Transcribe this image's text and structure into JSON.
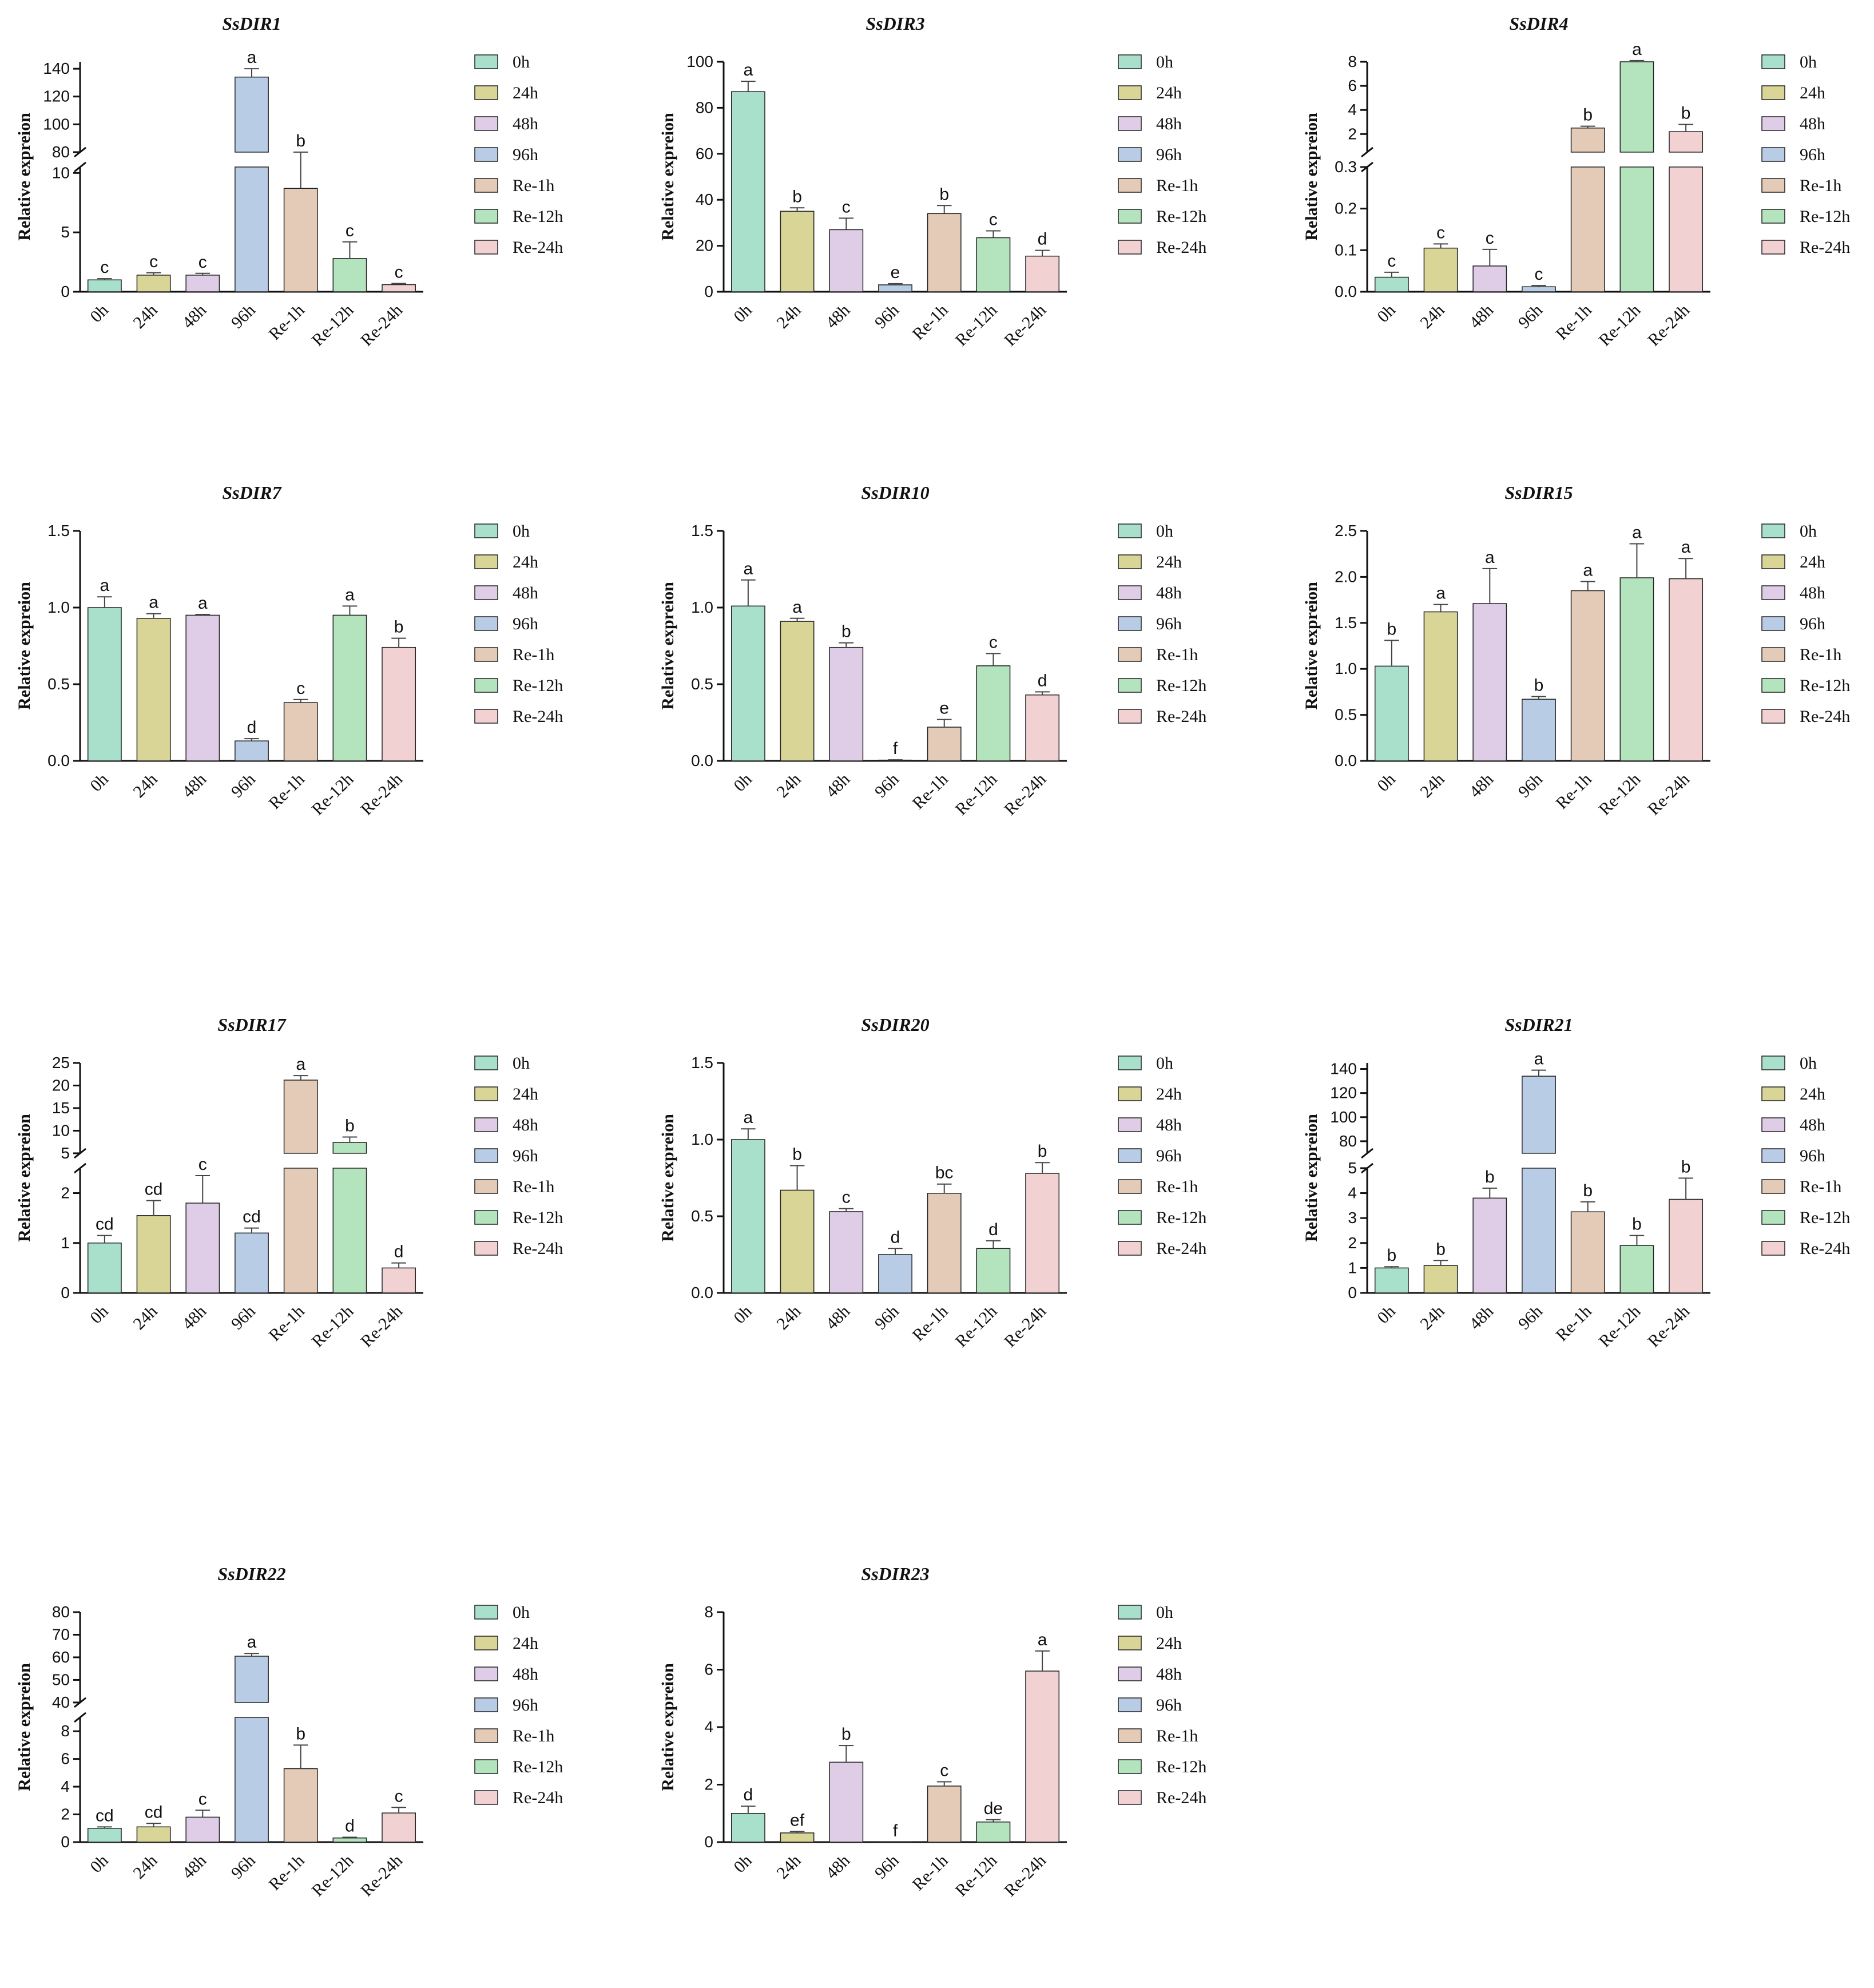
{
  "legend_colors": [
    "#a8e0cc",
    "#d8d596",
    "#dfcce6",
    "#b9cce6",
    "#e4cbb8",
    "#b3e4bd",
    "#f1d1d2"
  ],
  "chart_data": [
    {
      "type": "bar",
      "title": "SsDIR1",
      "ylabel": "Relative expreion",
      "categories": [
        "0h",
        "24h",
        "48h",
        "96h",
        "Re-1h",
        "Re-12h",
        "Re-24h"
      ],
      "values": [
        1.0,
        1.4,
        1.4,
        134,
        8.7,
        2.8,
        0.6
      ],
      "errors": [
        0.1,
        0.2,
        0.15,
        6,
        2.7,
        1.4,
        0.1
      ],
      "letters": [
        "c",
        "c",
        "c",
        "a",
        "b",
        "c",
        "c"
      ],
      "legend": [
        "0h",
        "24h",
        "48h",
        "96h",
        "Re-1h",
        "Re-12h",
        "Re-24h"
      ],
      "segments": [
        {
          "range": [
            0,
            10.5
          ],
          "ticks": [
            0,
            5,
            10
          ]
        },
        {
          "range": [
            80,
            145
          ],
          "ticks": [
            80,
            100,
            120,
            140
          ]
        }
      ]
    },
    {
      "type": "bar",
      "title": "SsDIR3",
      "ylabel": "Relative expreion",
      "categories": [
        "0h",
        "24h",
        "48h",
        "96h",
        "Re-1h",
        "Re-12h",
        "Re-24h"
      ],
      "values": [
        87,
        35,
        27,
        3,
        34,
        23.5,
        15.5
      ],
      "errors": [
        4.5,
        1.5,
        5,
        0.5,
        3.5,
        3,
        2.5
      ],
      "letters": [
        "a",
        "b",
        "c",
        "e",
        "b",
        "c",
        "d"
      ],
      "legend": [
        "0h",
        "24h",
        "48h",
        "96h",
        "Re-1h",
        "Re-12h",
        "Re-24h"
      ],
      "segments": [
        {
          "range": [
            0,
            100
          ],
          "ticks": [
            0,
            20,
            40,
            60,
            80,
            100
          ]
        }
      ]
    },
    {
      "type": "bar",
      "title": "SsDIR4",
      "ylabel": "Relative expreion",
      "categories": [
        "0h",
        "24h",
        "48h",
        "96h",
        "Re-1h",
        "Re-12h",
        "Re-24h"
      ],
      "values": [
        0.035,
        0.105,
        0.062,
        0.012,
        2.5,
        8.0,
        2.2
      ],
      "errors": [
        0.012,
        0.01,
        0.04,
        0.003,
        0.15,
        0.1,
        0.6
      ],
      "letters": [
        "c",
        "c",
        "c",
        "c",
        "b",
        "a",
        "b"
      ],
      "legend": [
        "0h",
        "24h",
        "48h",
        "96h",
        "Re-1h",
        "Re-12h",
        "Re-24h"
      ],
      "segments": [
        {
          "range": [
            0,
            0.3
          ],
          "ticks": [
            0.0,
            0.1,
            0.2,
            0.3
          ]
        },
        {
          "range": [
            0.5,
            8
          ],
          "ticks": [
            2,
            4,
            6,
            8
          ]
        }
      ]
    },
    {
      "type": "bar",
      "title": "SsDIR7",
      "ylabel": "Relative expreion",
      "categories": [
        "0h",
        "24h",
        "48h",
        "96h",
        "Re-1h",
        "Re-12h",
        "Re-24h"
      ],
      "values": [
        1.0,
        0.93,
        0.95,
        0.13,
        0.38,
        0.95,
        0.74
      ],
      "errors": [
        0.07,
        0.03,
        0.005,
        0.015,
        0.02,
        0.06,
        0.06
      ],
      "letters": [
        "a",
        "a",
        "a",
        "d",
        "c",
        "a",
        "b"
      ],
      "legend": [
        "0h",
        "24h",
        "48h",
        "96h",
        "Re-1h",
        "Re-12h",
        "Re-24h"
      ],
      "segments": [
        {
          "range": [
            0,
            1.5
          ],
          "ticks": [
            0.0,
            0.5,
            1.0,
            1.5
          ]
        }
      ]
    },
    {
      "type": "bar",
      "title": "SsDIR10",
      "ylabel": "Relative expreion",
      "categories": [
        "0h",
        "24h",
        "48h",
        "96h",
        "Re-1h",
        "Re-12h",
        "Re-24h"
      ],
      "values": [
        1.01,
        0.91,
        0.74,
        0.005,
        0.22,
        0.62,
        0.43
      ],
      "errors": [
        0.17,
        0.02,
        0.03,
        0.002,
        0.05,
        0.08,
        0.02
      ],
      "letters": [
        "a",
        "a",
        "b",
        "f",
        "e",
        "c",
        "d"
      ],
      "legend": [
        "0h",
        "24h",
        "48h",
        "96h",
        "Re-1h",
        "Re-12h",
        "Re-24h"
      ],
      "segments": [
        {
          "range": [
            0,
            1.5
          ],
          "ticks": [
            0.0,
            0.5,
            1.0,
            1.5
          ]
        }
      ]
    },
    {
      "type": "bar",
      "title": "SsDIR15",
      "ylabel": "Relative expreion",
      "categories": [
        "0h",
        "24h",
        "48h",
        "96h",
        "Re-1h",
        "Re-12h",
        "Re-24h"
      ],
      "values": [
        1.03,
        1.62,
        1.71,
        0.67,
        1.85,
        1.99,
        1.98
      ],
      "errors": [
        0.28,
        0.08,
        0.38,
        0.03,
        0.1,
        0.37,
        0.22
      ],
      "letters": [
        "b",
        "a",
        "a",
        "b",
        "a",
        "a",
        "a"
      ],
      "legend": [
        "0h",
        "24h",
        "48h",
        "96h",
        "Re-1h",
        "Re-12h",
        "Re-24h"
      ],
      "segments": [
        {
          "range": [
            0,
            2.5
          ],
          "ticks": [
            0.0,
            0.5,
            1.0,
            1.5,
            2.0,
            2.5
          ]
        }
      ]
    },
    {
      "type": "bar",
      "title": "SsDIR17",
      "ylabel": "Relative expreion",
      "categories": [
        "0h",
        "24h",
        "48h",
        "96h",
        "Re-1h",
        "Re-12h",
        "Re-24h"
      ],
      "values": [
        1.0,
        1.55,
        1.8,
        1.2,
        21.2,
        7.4,
        0.5
      ],
      "errors": [
        0.15,
        0.3,
        0.55,
        0.1,
        1.0,
        1.2,
        0.1
      ],
      "letters": [
        "cd",
        "cd",
        "c",
        "cd",
        "a",
        "b",
        "d"
      ],
      "legend": [
        "0h",
        "24h",
        "48h",
        "96h",
        "Re-1h",
        "Re-12h",
        "Re-24h"
      ],
      "segments": [
        {
          "range": [
            0,
            2.5
          ],
          "ticks": [
            0,
            1,
            2
          ]
        },
        {
          "range": [
            5,
            25
          ],
          "ticks": [
            5,
            10,
            15,
            20,
            25
          ]
        }
      ]
    },
    {
      "type": "bar",
      "title": "SsDIR20",
      "ylabel": "Relative expreion",
      "categories": [
        "0h",
        "24h",
        "48h",
        "96h",
        "Re-1h",
        "Re-12h",
        "Re-24h"
      ],
      "values": [
        1.0,
        0.67,
        0.53,
        0.25,
        0.65,
        0.29,
        0.78
      ],
      "errors": [
        0.07,
        0.16,
        0.02,
        0.04,
        0.06,
        0.05,
        0.07
      ],
      "letters": [
        "a",
        "b",
        "c",
        "d",
        "bc",
        "d",
        "b"
      ],
      "legend": [
        "0h",
        "24h",
        "48h",
        "96h",
        "Re-1h",
        "Re-12h",
        "Re-24h"
      ],
      "segments": [
        {
          "range": [
            0,
            1.5
          ],
          "ticks": [
            0.0,
            0.5,
            1.0,
            1.5
          ]
        }
      ]
    },
    {
      "type": "bar",
      "title": "SsDIR21",
      "ylabel": "Relative expreion",
      "categories": [
        "0h",
        "24h",
        "48h",
        "96h",
        "Re-1h",
        "Re-12h",
        "Re-24h"
      ],
      "values": [
        1.0,
        1.1,
        3.8,
        134,
        3.25,
        1.9,
        3.75
      ],
      "errors": [
        0.05,
        0.2,
        0.4,
        5,
        0.4,
        0.4,
        0.85
      ],
      "letters": [
        "b",
        "b",
        "b",
        "a",
        "b",
        "b",
        "b"
      ],
      "legend": [
        "0h",
        "24h",
        "48h",
        "96h",
        "Re-1h",
        "Re-12h",
        "Re-24h"
      ],
      "segments": [
        {
          "range": [
            0,
            5
          ],
          "ticks": [
            0,
            1,
            2,
            3,
            4,
            5
          ]
        },
        {
          "range": [
            70,
            145
          ],
          "ticks": [
            80,
            100,
            120,
            140
          ]
        }
      ]
    },
    {
      "type": "bar",
      "title": "SsDIR22",
      "ylabel": "Relative expreion",
      "categories": [
        "0h",
        "24h",
        "48h",
        "96h",
        "Re-1h",
        "Re-12h",
        "Re-24h"
      ],
      "values": [
        1.0,
        1.1,
        1.8,
        60.5,
        5.3,
        0.3,
        2.1
      ],
      "errors": [
        0.1,
        0.25,
        0.5,
        1.2,
        1.7,
        0.05,
        0.4
      ],
      "letters": [
        "cd",
        "cd",
        "c",
        "a",
        "b",
        "d",
        "c"
      ],
      "legend": [
        "0h",
        "24h",
        "48h",
        "96h",
        "Re-1h",
        "Re-12h",
        "Re-24h"
      ],
      "segments": [
        {
          "range": [
            0,
            9
          ],
          "ticks": [
            0,
            2,
            4,
            6,
            8
          ]
        },
        {
          "range": [
            40,
            80
          ],
          "ticks": [
            40,
            50,
            60,
            70,
            80
          ]
        }
      ]
    },
    {
      "type": "bar",
      "title": "SsDIR23",
      "ylabel": "Relative expreion",
      "categories": [
        "0h",
        "24h",
        "48h",
        "96h",
        "Re-1h",
        "Re-12h",
        "Re-24h"
      ],
      "values": [
        1.0,
        0.32,
        2.78,
        0.0,
        1.95,
        0.7,
        5.95
      ],
      "errors": [
        0.25,
        0.05,
        0.58,
        0.0,
        0.15,
        0.08,
        0.7
      ],
      "letters": [
        "d",
        "ef",
        "b",
        "f",
        "c",
        "de",
        "a"
      ],
      "legend": [
        "0h",
        "24h",
        "48h",
        "96h",
        "Re-1h",
        "Re-12h",
        "Re-24h"
      ],
      "segments": [
        {
          "range": [
            0,
            8
          ],
          "ticks": [
            0,
            2,
            4,
            6,
            8
          ]
        }
      ]
    }
  ]
}
